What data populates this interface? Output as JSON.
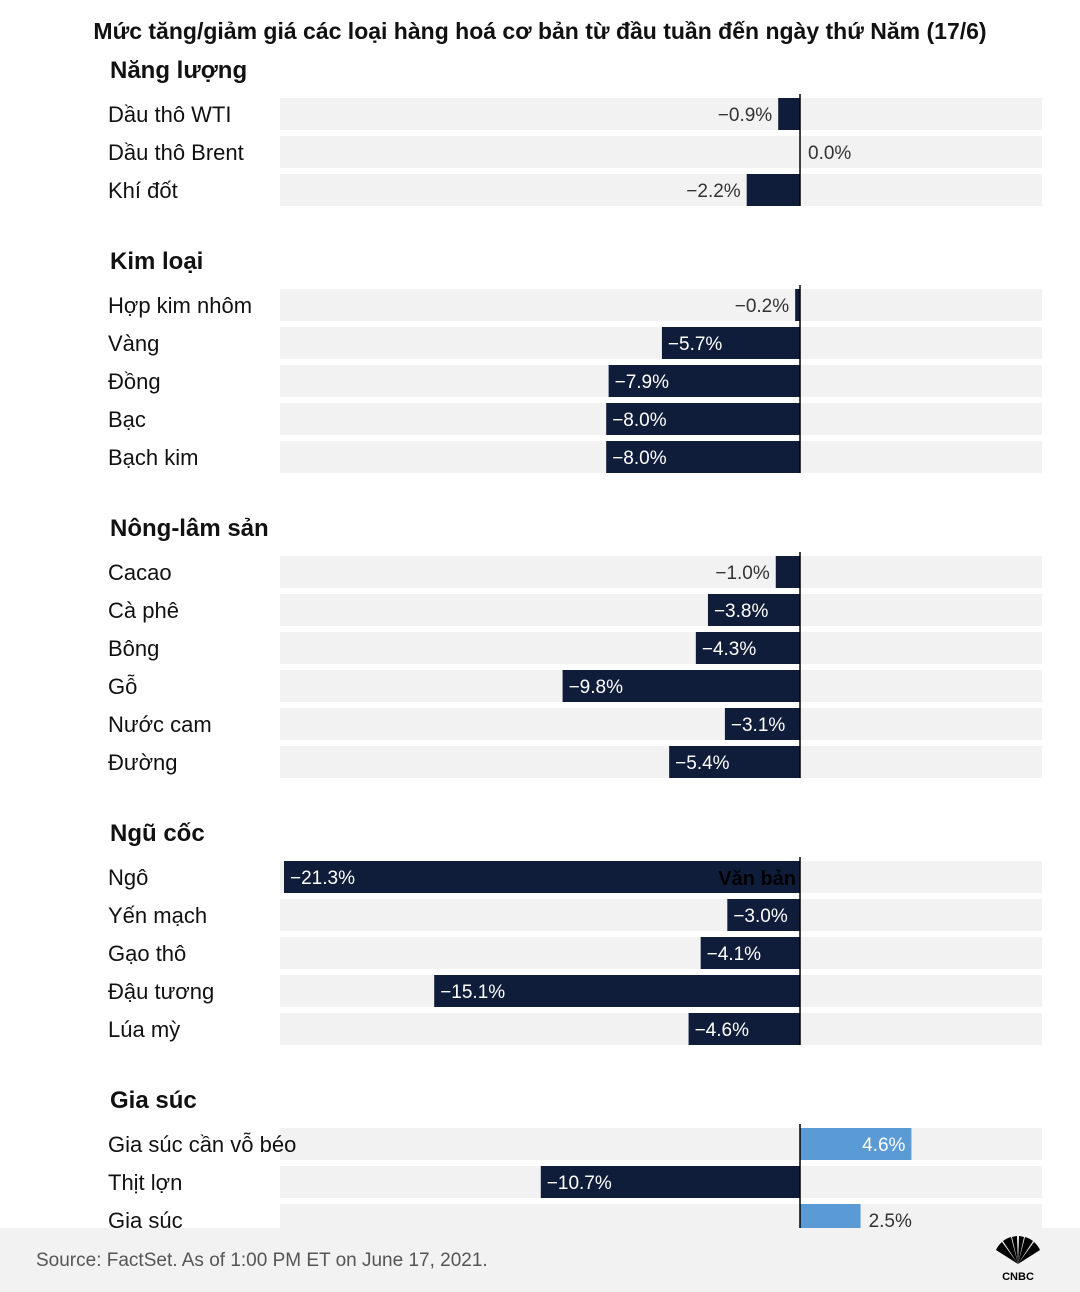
{
  "chart_data": {
    "type": "bar",
    "orientation": "horizontal",
    "title": "Mức tăng/giảm giá các loại hàng hoá cơ bản từ đầu tuần đến ngày thứ Năm (17/6)",
    "unit": "%",
    "xlim": [
      -21.3,
      15
    ],
    "groups": [
      {
        "name": "Năng lượng",
        "items": [
          {
            "label": "Dầu thô WTI",
            "value": -0.9,
            "value_label": "−0.9%"
          },
          {
            "label": "Dầu thô Brent",
            "value": 0.0,
            "value_label": "0.0%"
          },
          {
            "label": "Khí đốt",
            "value": -2.2,
            "value_label": "−2.2%"
          }
        ]
      },
      {
        "name": "Kim loại",
        "items": [
          {
            "label": "Hợp kim nhôm",
            "value": -0.2,
            "value_label": "−0.2%"
          },
          {
            "label": "Vàng",
            "value": -5.7,
            "value_label": "−5.7%"
          },
          {
            "label": "Đồng",
            "value": -7.9,
            "value_label": "−7.9%"
          },
          {
            "label": "Bạc",
            "value": -8.0,
            "value_label": "−8.0%"
          },
          {
            "label": "Bạch kim",
            "value": -8.0,
            "value_label": "−8.0%"
          }
        ]
      },
      {
        "name": "Nông-lâm sản",
        "items": [
          {
            "label": "Cacao",
            "value": -1.0,
            "value_label": "−1.0%"
          },
          {
            "label": "Cà phê",
            "value": -3.8,
            "value_label": "−3.8%"
          },
          {
            "label": "Bông",
            "value": -4.3,
            "value_label": "−4.3%"
          },
          {
            "label": "Gỗ",
            "value": -9.8,
            "value_label": "−9.8%"
          },
          {
            "label": "Nước cam",
            "value": -3.1,
            "value_label": "−3.1%"
          },
          {
            "label": "Đường",
            "value": -5.4,
            "value_label": "−5.4%"
          }
        ]
      },
      {
        "name": "Ngũ cốc",
        "items": [
          {
            "label": "Ngô",
            "value": -21.3,
            "value_label": "−21.3%"
          },
          {
            "label": "Yến mạch",
            "value": -3.0,
            "value_label": "−3.0%"
          },
          {
            "label": "Gạo thô",
            "value": -4.1,
            "value_label": "−4.1%"
          },
          {
            "label": "Đậu tương",
            "value": -15.1,
            "value_label": "−15.1%"
          },
          {
            "label": "Lúa mỳ",
            "value": -4.6,
            "value_label": "−4.6%"
          }
        ]
      },
      {
        "name": "Gia súc",
        "items": [
          {
            "label": "Gia súc cần vỗ béo",
            "value": 4.6,
            "value_label": "4.6%"
          },
          {
            "label": "Thịt lợn",
            "value": -10.7,
            "value_label": "−10.7%"
          },
          {
            "label": "Gia súc",
            "value": 2.5,
            "value_label": "2.5%"
          }
        ]
      }
    ],
    "annotation": "Văn bản",
    "colors": {
      "negative": "#0f1c3a",
      "positive": "#5b9bd5",
      "track": "#f2f2f2"
    }
  },
  "footer": {
    "source": "Source: FactSet. As of 1:00 PM ET on June 17, 2021.",
    "logo_text": "CNBC"
  }
}
